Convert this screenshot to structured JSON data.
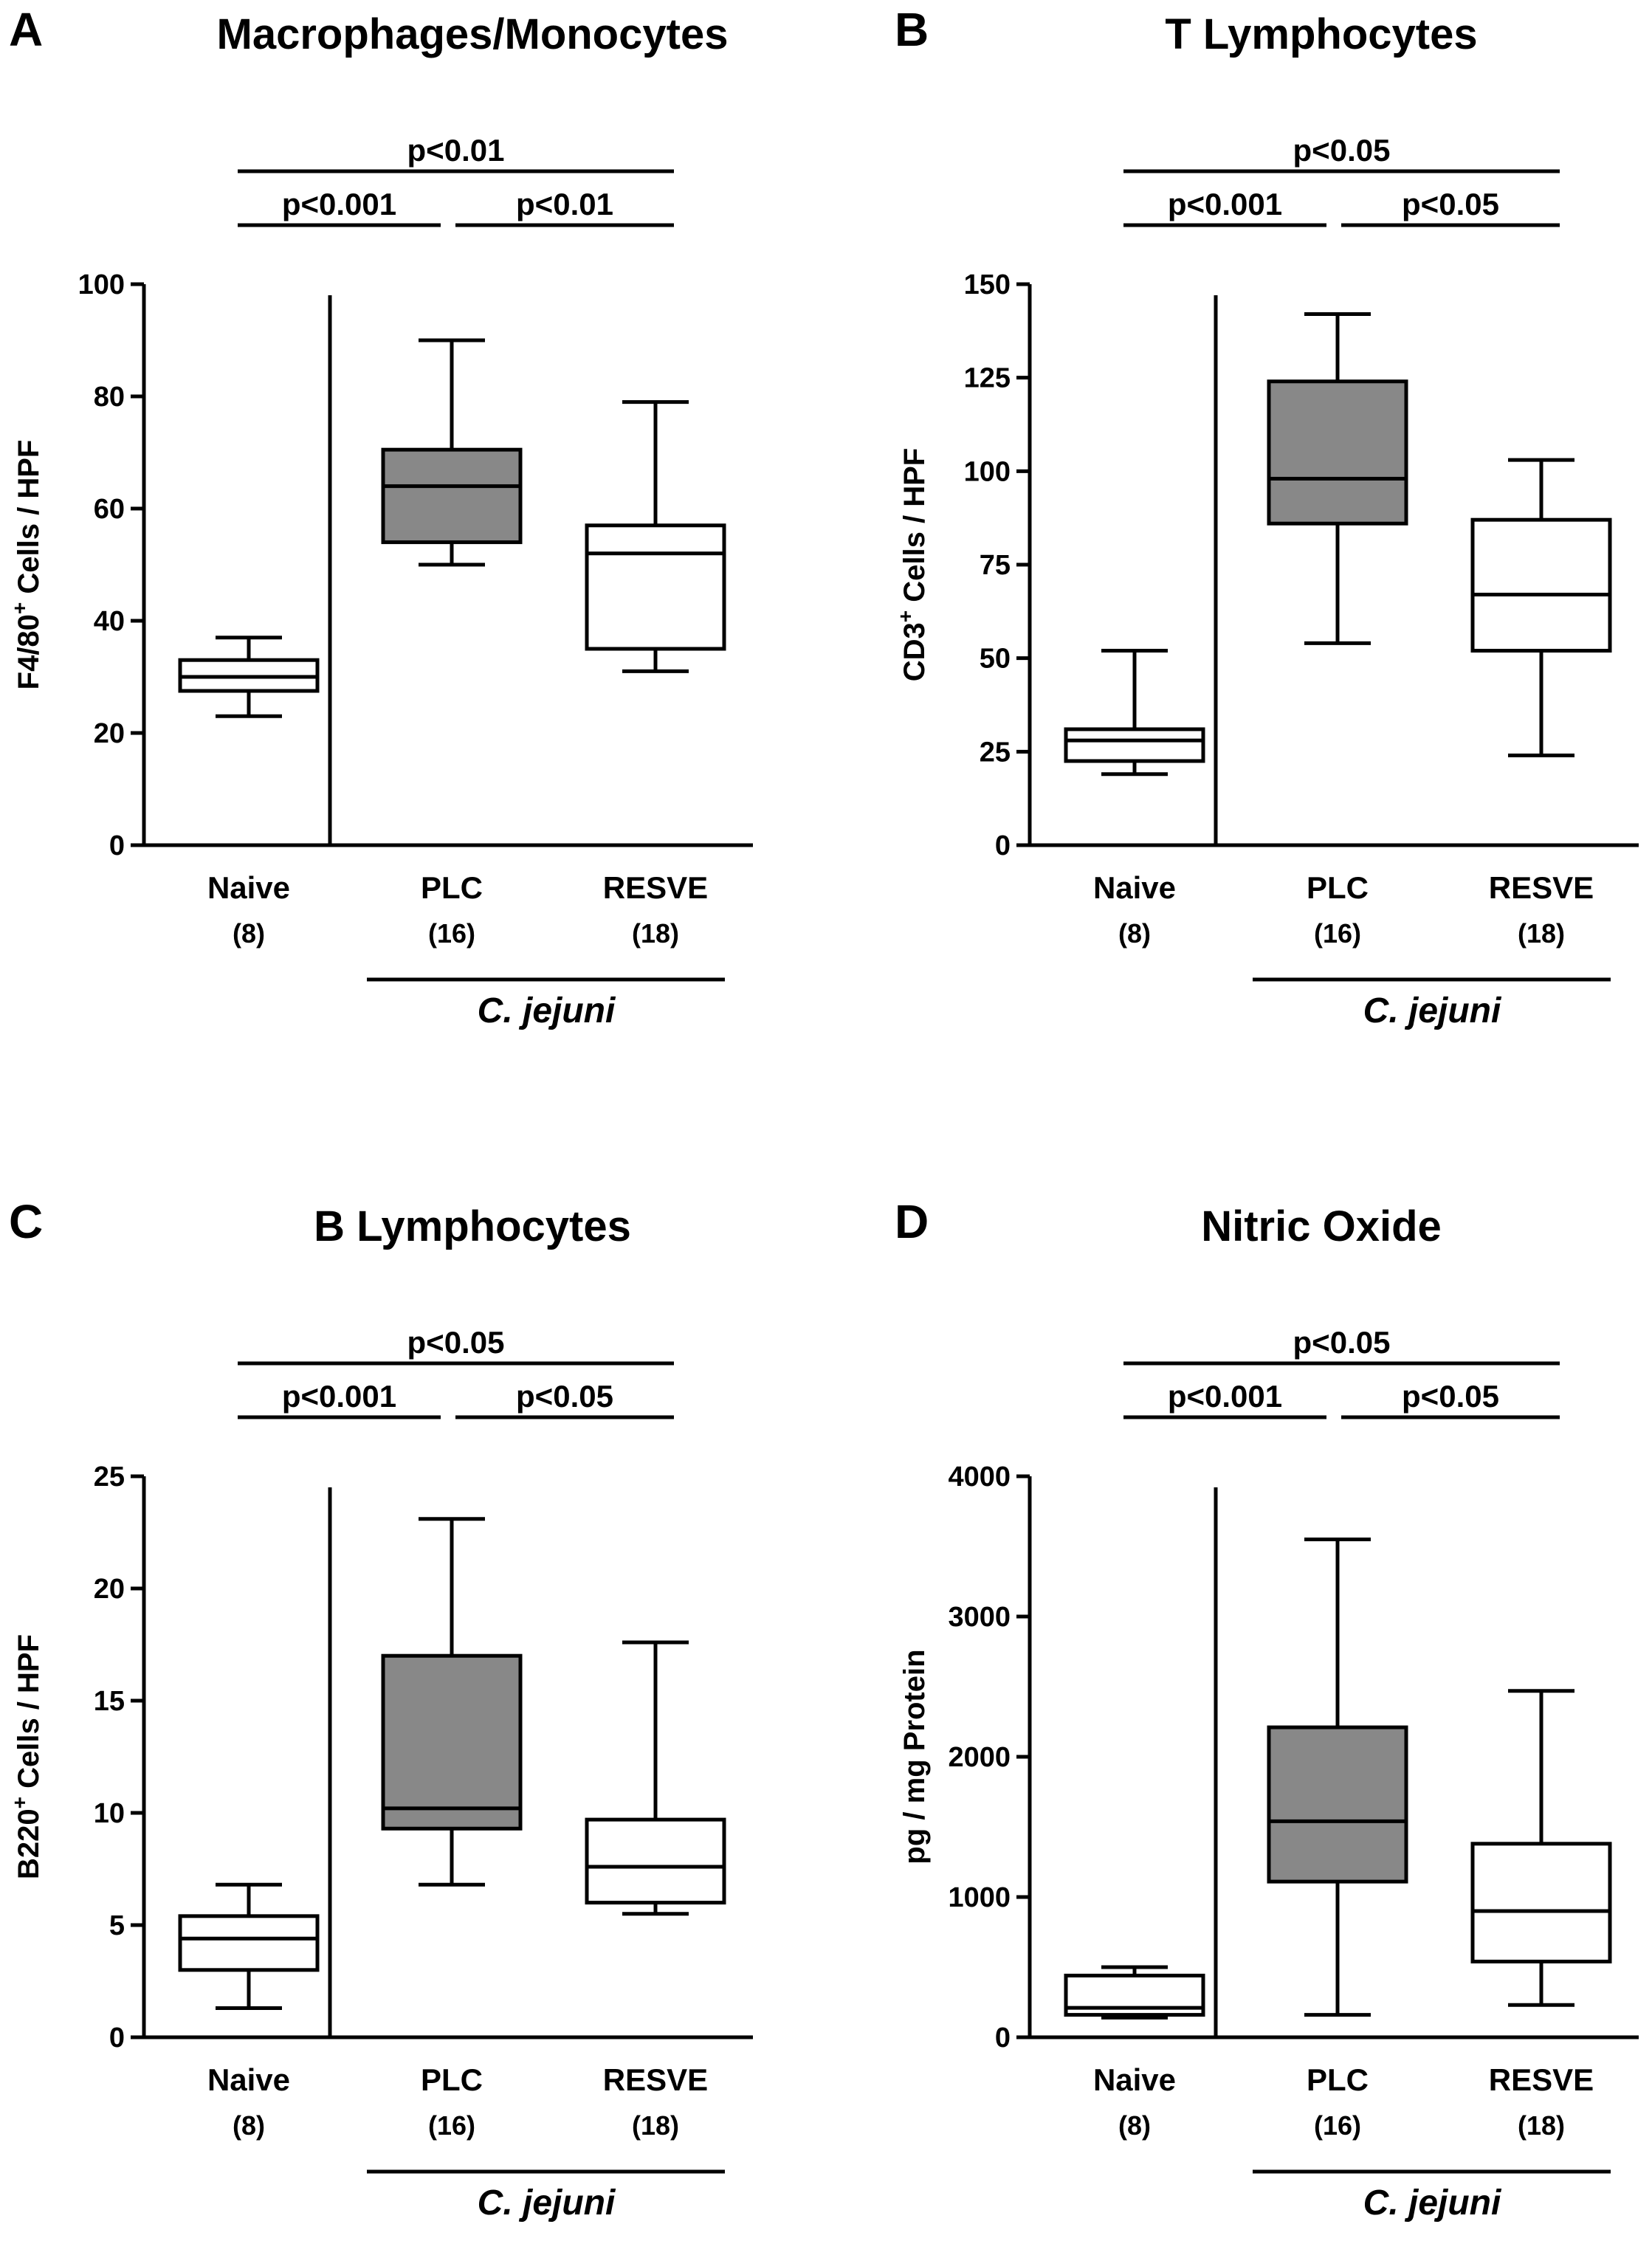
{
  "panels": [
    {
      "letter": "A",
      "title": "Macrophages/Monocytes",
      "chart_data": {
        "type": "boxplot",
        "ylabel_main": "F4/80",
        "ylabel_sup": "+",
        "ylabel_rest": " Cells / HPF",
        "ylim": [
          0,
          100
        ],
        "yticks": [
          0,
          20,
          40,
          60,
          80,
          100
        ],
        "groups": [
          {
            "name": "Naive",
            "n": "(8)",
            "min": 23,
            "q1": 27.5,
            "median": 30,
            "q3": 33,
            "max": 37,
            "fill": "#ffffff"
          },
          {
            "name": "PLC",
            "n": "(16)",
            "min": 50,
            "q1": 54,
            "median": 64,
            "q3": 70.5,
            "max": 90,
            "fill": "#888888"
          },
          {
            "name": "RESVE",
            "n": "(18)",
            "min": 31,
            "q1": 35,
            "median": 52,
            "q3": 57,
            "max": 79,
            "fill": "#ffffff"
          }
        ],
        "group_label": "C. jejuni",
        "significance": [
          {
            "from": 0,
            "to": 2,
            "label": "p<0.01"
          },
          {
            "from": 0,
            "to": 1,
            "label": "p<0.001"
          },
          {
            "from": 1,
            "to": 2,
            "label": "p<0.01"
          }
        ]
      }
    },
    {
      "letter": "B",
      "title": "T Lymphocytes",
      "chart_data": {
        "type": "boxplot",
        "ylabel_main": "CD3",
        "ylabel_sup": "+",
        "ylabel_rest": " Cells / HPF",
        "ylim": [
          0,
          150
        ],
        "yticks": [
          0,
          25,
          50,
          75,
          100,
          125,
          150
        ],
        "groups": [
          {
            "name": "Naive",
            "n": "(8)",
            "min": 19,
            "q1": 22.5,
            "median": 28,
            "q3": 31,
            "max": 52,
            "fill": "#ffffff"
          },
          {
            "name": "PLC",
            "n": "(16)",
            "min": 54,
            "q1": 86,
            "median": 98,
            "q3": 124,
            "max": 142,
            "fill": "#888888"
          },
          {
            "name": "RESVE",
            "n": "(18)",
            "min": 24,
            "q1": 52,
            "median": 67,
            "q3": 87,
            "max": 103,
            "fill": "#ffffff"
          }
        ],
        "group_label": "C. jejuni",
        "significance": [
          {
            "from": 0,
            "to": 2,
            "label": "p<0.05"
          },
          {
            "from": 0,
            "to": 1,
            "label": "p<0.001"
          },
          {
            "from": 1,
            "to": 2,
            "label": "p<0.05"
          }
        ]
      }
    },
    {
      "letter": "C",
      "title": "B Lymphocytes",
      "chart_data": {
        "type": "boxplot",
        "ylabel_main": "B220",
        "ylabel_sup": "+",
        "ylabel_rest": " Cells / HPF",
        "ylim": [
          0,
          25
        ],
        "yticks": [
          0,
          5,
          10,
          15,
          20,
          25
        ],
        "groups": [
          {
            "name": "Naive",
            "n": "(8)",
            "min": 1.3,
            "q1": 3,
            "median": 4.4,
            "q3": 5.4,
            "max": 6.8,
            "fill": "#ffffff"
          },
          {
            "name": "PLC",
            "n": "(16)",
            "min": 6.8,
            "q1": 9.3,
            "median": 10.2,
            "q3": 17,
            "max": 23.1,
            "fill": "#888888"
          },
          {
            "name": "RESVE",
            "n": "(18)",
            "min": 5.5,
            "q1": 6,
            "median": 7.6,
            "q3": 9.7,
            "max": 17.6,
            "fill": "#ffffff"
          }
        ],
        "group_label": "C. jejuni",
        "significance": [
          {
            "from": 0,
            "to": 2,
            "label": "p<0.05"
          },
          {
            "from": 0,
            "to": 1,
            "label": "p<0.001"
          },
          {
            "from": 1,
            "to": 2,
            "label": "p<0.05"
          }
        ]
      }
    },
    {
      "letter": "D",
      "title": "Nitric Oxide",
      "chart_data": {
        "type": "boxplot",
        "ylabel_main": "pg / mg Protein",
        "ylabel_sup": "",
        "ylabel_rest": "",
        "ylim": [
          0,
          4000
        ],
        "yticks": [
          0,
          1000,
          2000,
          3000,
          4000
        ],
        "groups": [
          {
            "name": "Naive",
            "n": "(8)",
            "min": 140,
            "q1": 160,
            "median": 210,
            "q3": 440,
            "max": 500,
            "fill": "#ffffff"
          },
          {
            "name": "PLC",
            "n": "(16)",
            "min": 160,
            "q1": 1110,
            "median": 1540,
            "q3": 2210,
            "max": 3550,
            "fill": "#888888"
          },
          {
            "name": "RESVE",
            "n": "(18)",
            "min": 230,
            "q1": 540,
            "median": 900,
            "q3": 1380,
            "max": 2470,
            "fill": "#ffffff"
          }
        ],
        "group_label": "C. jejuni",
        "significance": [
          {
            "from": 0,
            "to": 2,
            "label": "p<0.05"
          },
          {
            "from": 0,
            "to": 1,
            "label": "p<0.001"
          },
          {
            "from": 1,
            "to": 2,
            "label": "p<0.05"
          }
        ]
      }
    }
  ]
}
